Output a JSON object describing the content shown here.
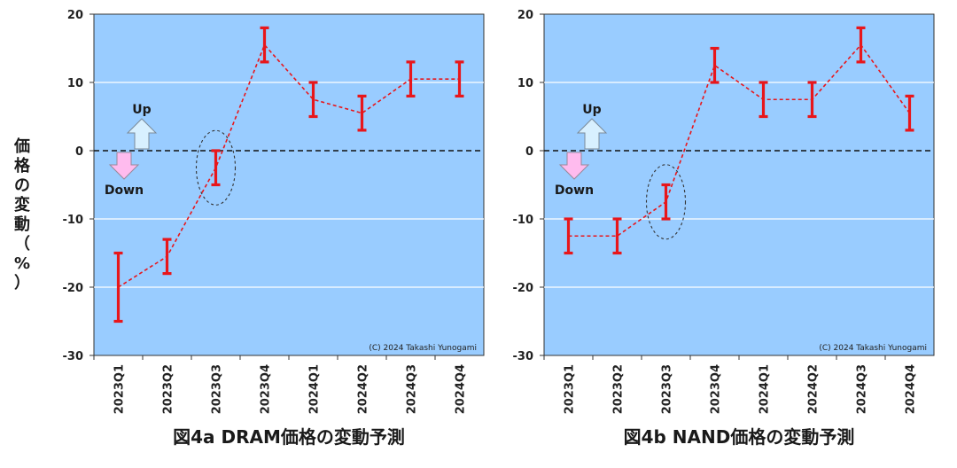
{
  "y_axis_label": "価格の変動（%）",
  "chart_data": [
    {
      "type": "line",
      "title": "図4a DRAM価格の変動予測",
      "categories": [
        "2023Q1",
        "2023Q2",
        "2023Q3",
        "2023Q4",
        "2024Q1",
        "2024Q2",
        "2024Q3",
        "2024Q4"
      ],
      "values": [
        -20,
        -15.5,
        -2.5,
        15.5,
        7.5,
        5.5,
        10.5,
        10.5
      ],
      "error_low": [
        -25,
        -18,
        -5,
        13,
        5,
        3,
        8,
        8
      ],
      "error_high": [
        -15,
        -13,
        0,
        18,
        10,
        8,
        13,
        13
      ],
      "ylim": [
        -30,
        20
      ],
      "yticks": [
        20,
        10,
        0,
        -10,
        -20,
        -30
      ],
      "highlight_category": "2023Q3",
      "up_label": "Up",
      "down_label": "Down",
      "copyright": "(C) 2024 Takashi Yunogami",
      "colors": {
        "plot_bg": "#99ccff",
        "series": "#e8161b",
        "up_arrow": "#d8f0ff",
        "down_arrow": "#ffbbee"
      }
    },
    {
      "type": "line",
      "title": "図4b NAND価格の変動予測",
      "categories": [
        "2023Q1",
        "2023Q2",
        "2023Q3",
        "2023Q4",
        "2024Q1",
        "2024Q2",
        "2024Q3",
        "2024Q4"
      ],
      "values": [
        -12.5,
        -12.5,
        -7.5,
        12.5,
        7.5,
        7.5,
        15.5,
        5.5
      ],
      "error_low": [
        -15,
        -15,
        -10,
        10,
        5,
        5,
        13,
        3
      ],
      "error_high": [
        -10,
        -10,
        -5,
        15,
        10,
        10,
        18,
        8
      ],
      "ylim": [
        -30,
        20
      ],
      "yticks": [
        20,
        10,
        0,
        -10,
        -20,
        -30
      ],
      "highlight_category": "2023Q3",
      "up_label": "Up",
      "down_label": "Down",
      "copyright": "(C) 2024 Takashi Yunogami",
      "colors": {
        "plot_bg": "#99ccff",
        "series": "#e8161b",
        "up_arrow": "#d8f0ff",
        "down_arrow": "#ffbbee"
      }
    }
  ]
}
